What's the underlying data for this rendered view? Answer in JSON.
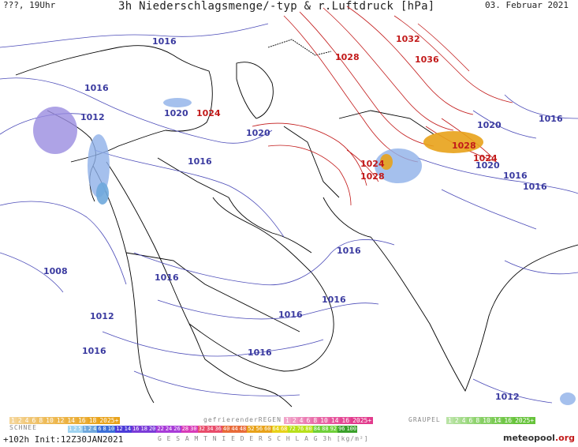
{
  "header": {
    "left": "???, 19Uhr",
    "title": "3h Niederschlagsmenge/-typ & r.Luftdruck [hPa]",
    "date": "03. Februar 2021"
  },
  "isobar_labels": {
    "blue": [
      "1016",
      "1016",
      "1012",
      "1020",
      "1020",
      "1016",
      "1020",
      "1016",
      "1016",
      "1020",
      "1016",
      "1016",
      "1008",
      "1016",
      "1016",
      "1012",
      "1016",
      "1016",
      "1016",
      "1012"
    ],
    "red": [
      "1024",
      "1028",
      "1032",
      "1036",
      "1024",
      "1028",
      "1028",
      "1024"
    ]
  },
  "legend": {
    "snow_label": "SCHNEE",
    "freezing_label": "gefrierenderREGEN",
    "graupel_label": "GRAUPEL",
    "total_label": "G E S A M T N I E D E R S C H L A G   3h   [kg/m²]",
    "rain_scale": [
      "1",
      "2",
      "4",
      "6",
      "8",
      "10",
      "12",
      "14",
      "16",
      "18",
      "2025+"
    ],
    "freezing_scale": [
      "1",
      "2",
      "4",
      "6",
      "8",
      "10",
      "14",
      "16",
      "2025+"
    ],
    "graupel_scale": [
      "1",
      "2",
      "4",
      "6",
      "8",
      "10",
      "14",
      "16",
      "2025+"
    ],
    "total_scale": [
      "1",
      "2",
      "5",
      "1",
      "2",
      "4",
      "6",
      "8",
      "10",
      "12",
      "14",
      "16",
      "18",
      "20",
      "22",
      "24",
      "26",
      "28",
      "30",
      "32",
      "34",
      "36",
      "40",
      "44",
      "48",
      "52",
      "56",
      "60",
      "64",
      "68",
      "72",
      "76",
      "80",
      "84",
      "88",
      "92",
      "96",
      "100"
    ],
    "colors": {
      "rain": "#e8a21a",
      "freezing": "#e23a8c",
      "graupel": "#66c33a",
      "total_start": "#6fa8dc",
      "total_end": "#3aa02a"
    }
  },
  "footer": {
    "run": "+102h Init:12Z30JAN2021",
    "logo": "meteopool",
    "logo_suffix": ".org"
  }
}
